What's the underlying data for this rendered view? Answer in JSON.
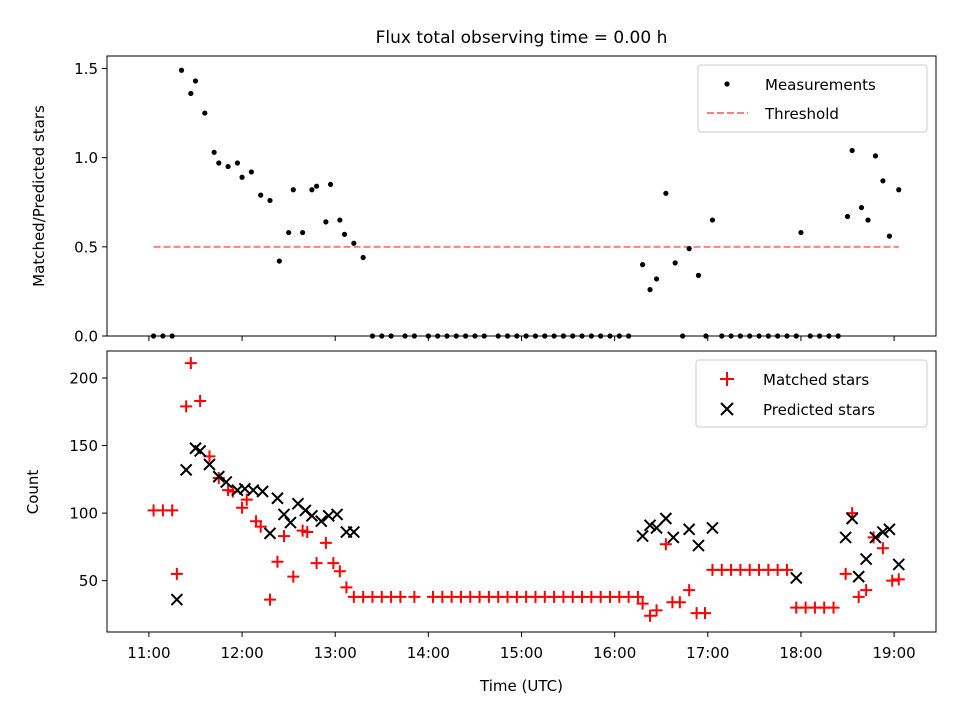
{
  "title": "Flux total observing time = 0.00 h",
  "xlabel": "Time (UTC)",
  "x_ticks": [
    "11:00",
    "12:00",
    "13:00",
    "14:00",
    "15:00",
    "16:00",
    "17:00",
    "18:00",
    "19:00"
  ],
  "chart_data": [
    {
      "type": "scatter",
      "title": "Flux total observing time = 0.00 h",
      "ylabel": "Matched/Predicted stars",
      "xlabel": "",
      "x_unit": "hours UTC",
      "xlim": [
        10.55,
        19.45
      ],
      "ylim": [
        0,
        1.57
      ],
      "y_ticks": [
        "0.0",
        "0.5",
        "1.0",
        "1.5"
      ],
      "legend_position": "top-right",
      "legend": [
        "Measurements",
        "Threshold"
      ],
      "series": [
        {
          "name": "Measurements",
          "marker": "dot",
          "color": "#000000",
          "x": [
            11.05,
            11.15,
            11.25,
            11.35,
            11.45,
            11.5,
            11.6,
            11.7,
            11.75,
            11.85,
            11.95,
            12.0,
            12.1,
            12.2,
            12.3,
            12.4,
            12.5,
            12.55,
            12.65,
            12.75,
            12.8,
            12.9,
            12.95,
            13.05,
            13.1,
            13.2,
            13.3,
            13.4,
            13.5,
            13.6,
            13.75,
            13.85,
            14.0,
            14.1,
            14.2,
            14.3,
            14.4,
            14.5,
            14.6,
            14.75,
            14.85,
            14.95,
            15.05,
            15.15,
            15.25,
            15.35,
            15.45,
            15.55,
            15.65,
            15.75,
            15.85,
            15.95,
            16.05,
            16.15,
            16.3,
            16.38,
            16.45,
            16.55,
            16.65,
            16.73,
            16.8,
            16.9,
            16.98,
            17.05,
            17.15,
            17.25,
            17.35,
            17.45,
            17.55,
            17.65,
            17.75,
            17.85,
            17.95,
            18.0,
            18.1,
            18.2,
            18.3,
            18.4,
            18.5,
            18.55,
            18.65,
            18.72,
            18.8,
            18.88,
            18.95,
            19.05
          ],
          "y": [
            0.0,
            0.0,
            0.0,
            1.49,
            1.36,
            1.43,
            1.25,
            1.03,
            0.97,
            0.95,
            0.97,
            0.89,
            0.92,
            0.79,
            0.76,
            0.42,
            0.58,
            0.82,
            0.58,
            0.82,
            0.84,
            0.64,
            0.85,
            0.65,
            0.57,
            0.52,
            0.44,
            0.0,
            0.0,
            0.0,
            0.0,
            0.0,
            0.0,
            0.0,
            0.0,
            0.0,
            0.0,
            0.0,
            0.0,
            0.0,
            0.0,
            0.0,
            0.0,
            0.0,
            0.0,
            0.0,
            0.0,
            0.0,
            0.0,
            0.0,
            0.0,
            0.0,
            0.0,
            0.0,
            0.4,
            0.26,
            0.32,
            0.8,
            0.41,
            0.0,
            0.49,
            0.34,
            0.0,
            0.65,
            0.0,
            0.0,
            0.0,
            0.0,
            0.0,
            0.0,
            0.0,
            0.0,
            0.0,
            0.58,
            0.0,
            0.0,
            0.0,
            0.0,
            0.67,
            1.04,
            0.72,
            0.65,
            1.01,
            0.87,
            0.56,
            0.82
          ]
        },
        {
          "name": "Threshold",
          "style": "dashed-line",
          "color": "#ff7f7f",
          "x": [
            11.05,
            19.05
          ],
          "y": [
            0.5,
            0.5
          ]
        }
      ]
    },
    {
      "type": "scatter",
      "ylabel": "Count",
      "xlabel": "Time (UTC)",
      "x_unit": "hours UTC",
      "xlim": [
        10.55,
        19.45
      ],
      "ylim": [
        12,
        220
      ],
      "y_ticks": [
        "50",
        "100",
        "150",
        "200"
      ],
      "legend_position": "top-right",
      "legend": [
        "Matched stars",
        "Predicted stars"
      ],
      "series": [
        {
          "name": "Matched stars",
          "marker": "plus",
          "color": "#ff0000",
          "x": [
            11.05,
            11.15,
            11.25,
            11.3,
            11.4,
            11.45,
            11.55,
            11.65,
            11.75,
            11.85,
            11.9,
            12.0,
            12.05,
            12.15,
            12.2,
            12.3,
            12.38,
            12.45,
            12.55,
            12.65,
            12.7,
            12.8,
            12.9,
            12.98,
            13.05,
            13.12,
            13.2,
            13.3,
            13.4,
            13.5,
            13.6,
            13.7,
            13.85,
            14.05,
            14.15,
            14.25,
            14.35,
            14.45,
            14.55,
            14.65,
            14.75,
            14.85,
            14.95,
            15.05,
            15.15,
            15.25,
            15.35,
            15.45,
            15.55,
            15.65,
            15.75,
            15.85,
            15.95,
            16.05,
            16.15,
            16.25,
            16.3,
            16.38,
            16.45,
            16.55,
            16.62,
            16.7,
            16.8,
            16.88,
            16.97,
            17.05,
            17.15,
            17.25,
            17.35,
            17.45,
            17.55,
            17.65,
            17.75,
            17.85,
            17.95,
            18.05,
            18.15,
            18.25,
            18.35,
            18.48,
            18.55,
            18.62,
            18.7,
            18.78,
            18.88,
            18.98,
            19.05
          ],
          "y": [
            102,
            102,
            102,
            55,
            179,
            211,
            183,
            142,
            126,
            117,
            116,
            104,
            110,
            94,
            90,
            36,
            64,
            83,
            53,
            87,
            86,
            63,
            78,
            63,
            57,
            45,
            38,
            38,
            38,
            38,
            38,
            38,
            38,
            38,
            38,
            38,
            38,
            38,
            38,
            38,
            38,
            38,
            38,
            38,
            38,
            38,
            38,
            38,
            38,
            38,
            38,
            38,
            38,
            38,
            38,
            38,
            33,
            24,
            28,
            77,
            34,
            34,
            43,
            26,
            26,
            58,
            58,
            58,
            58,
            58,
            58,
            58,
            58,
            58,
            30,
            30,
            30,
            30,
            30,
            55,
            100,
            38,
            43,
            82,
            74,
            50,
            51
          ]
        },
        {
          "name": "Predicted stars",
          "marker": "x",
          "color": "#000000",
          "x": [
            11.3,
            11.4,
            11.5,
            11.55,
            11.65,
            11.75,
            11.83,
            11.95,
            12.03,
            12.12,
            12.22,
            12.3,
            12.38,
            12.45,
            12.52,
            12.6,
            12.68,
            12.75,
            12.85,
            12.93,
            13.02,
            13.12,
            13.2,
            16.3,
            16.38,
            16.45,
            16.55,
            16.63,
            16.8,
            16.9,
            17.05,
            17.95,
            18.48,
            18.55,
            18.62,
            18.7,
            18.8,
            18.88,
            18.95,
            19.05
          ],
          "y": [
            36,
            132,
            148,
            146,
            136,
            127,
            123,
            117,
            118,
            117,
            116,
            85,
            111,
            99,
            93,
            107,
            102,
            98,
            94,
            98,
            99,
            86,
            86,
            83,
            91,
            89,
            96,
            82,
            88,
            76,
            89,
            52,
            82,
            96,
            53,
            66,
            82,
            86,
            88,
            62
          ]
        }
      ]
    }
  ]
}
